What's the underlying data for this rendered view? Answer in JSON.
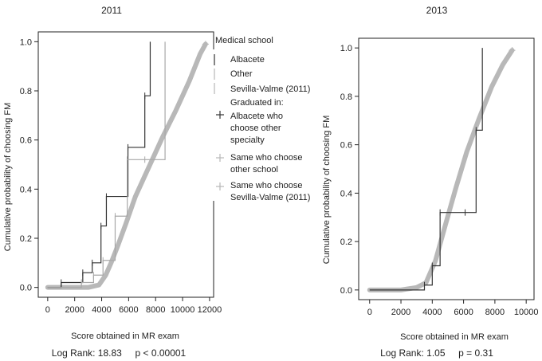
{
  "colors": {
    "dark": "#333333",
    "light": "#b8b8b8",
    "grid": "none"
  },
  "legend": {
    "title": "Medical school",
    "items": [
      {
        "label": "Albacete",
        "kind": "line",
        "color": "#333333"
      },
      {
        "label": "Other",
        "kind": "line",
        "color": "#b8b8b8"
      },
      {
        "label": "Sevilla-Valme (2011)",
        "kind": "line",
        "color": "#b8b8b8"
      },
      {
        "label": "Graduated in:",
        "kind": "text",
        "color": "#333333"
      },
      {
        "label": "Albacete who choose other specialty",
        "kind": "cross",
        "color": "#333333"
      },
      {
        "label": "Same who choose other school",
        "kind": "cross",
        "color": "#b8b8b8"
      },
      {
        "label": "Same who choose Sevilla-Valme (2011)",
        "kind": "cross",
        "color": "#b8b8b8"
      }
    ]
  },
  "chart_data": [
    {
      "type": "line",
      "title": "2011",
      "xlabel": "Score obtained in MR exam",
      "ylabel": "Cumulative probability of choosing FM",
      "xlim": [
        -700,
        12300
      ],
      "ylim": [
        -0.04,
        1.04
      ],
      "xticks": [
        0,
        2000,
        4000,
        6000,
        8000,
        10000,
        12000
      ],
      "xtick_labels": [
        "0",
        "2000",
        "4000",
        "6000",
        "8000",
        "10000",
        "12000"
      ],
      "yticks": [
        0.0,
        0.2,
        0.4,
        0.6,
        0.8,
        1.0
      ],
      "ytick_labels": [
        "0.0",
        "0.2",
        "0.4",
        "0.6",
        "0.8",
        "1.0"
      ],
      "footnote": "Log Rank: 18.83     p < 0.00001",
      "series": [
        {
          "name": "Albacete",
          "style": "step",
          "color": "#333333",
          "x": [
            0,
            1000,
            2600,
            3300,
            3950,
            4350,
            5950,
            7200,
            7600
          ],
          "y": [
            0.0,
            0.02,
            0.06,
            0.1,
            0.25,
            0.37,
            0.57,
            0.78,
            1.0
          ]
        },
        {
          "name": "Sevilla-Valme (2011)",
          "style": "step",
          "color": "#a8a8a8",
          "x": [
            0,
            2500,
            3400,
            4100,
            5000,
            5900,
            7200,
            8700
          ],
          "y": [
            0.0,
            0.02,
            0.05,
            0.11,
            0.29,
            0.52,
            0.52,
            1.0
          ]
        },
        {
          "name": "Other",
          "style": "smooth",
          "color": "#b8b8b8",
          "x": [
            0,
            1000,
            2000,
            3000,
            3800,
            4300,
            4700,
            5200,
            5800,
            6500,
            7500,
            8500,
            9500,
            10500,
            11300,
            11700
          ],
          "y": [
            0.0,
            0.0,
            0.0,
            0.0,
            0.01,
            0.05,
            0.1,
            0.17,
            0.26,
            0.37,
            0.49,
            0.61,
            0.72,
            0.84,
            0.95,
            0.99
          ]
        }
      ]
    },
    {
      "type": "line",
      "title": "2013",
      "xlabel": "Score obtained in MR exam",
      "ylabel": "Cumulative probability of choosing FM",
      "xlim": [
        -700,
        10500
      ],
      "ylim": [
        -0.04,
        1.04
      ],
      "xticks": [
        0,
        2000,
        4000,
        6000,
        8000,
        10000
      ],
      "xtick_labels": [
        "0",
        "2000",
        "4000",
        "6000",
        "8000",
        "10000"
      ],
      "yticks": [
        0.0,
        0.2,
        0.4,
        0.6,
        0.8,
        1.0
      ],
      "ytick_labels": [
        "0.0",
        "0.2",
        "0.4",
        "0.6",
        "0.8",
        "1.0"
      ],
      "footnote": "Log Rank: 1.05     p = 0.31",
      "series": [
        {
          "name": "Albacete",
          "style": "step",
          "color": "#333333",
          "x": [
            0,
            3500,
            4000,
            4500,
            6100,
            6800,
            7200
          ],
          "y": [
            0.0,
            0.02,
            0.1,
            0.32,
            0.32,
            0.66,
            1.0
          ]
        },
        {
          "name": "Other",
          "style": "smooth",
          "color": "#b8b8b8",
          "x": [
            0,
            1000,
            2000,
            3000,
            3600,
            4200,
            4800,
            5500,
            6200,
            7000,
            7800,
            8500,
            9100
          ],
          "y": [
            0.0,
            0.0,
            0.0,
            0.01,
            0.03,
            0.12,
            0.26,
            0.42,
            0.57,
            0.71,
            0.84,
            0.93,
            0.99
          ]
        }
      ]
    }
  ]
}
